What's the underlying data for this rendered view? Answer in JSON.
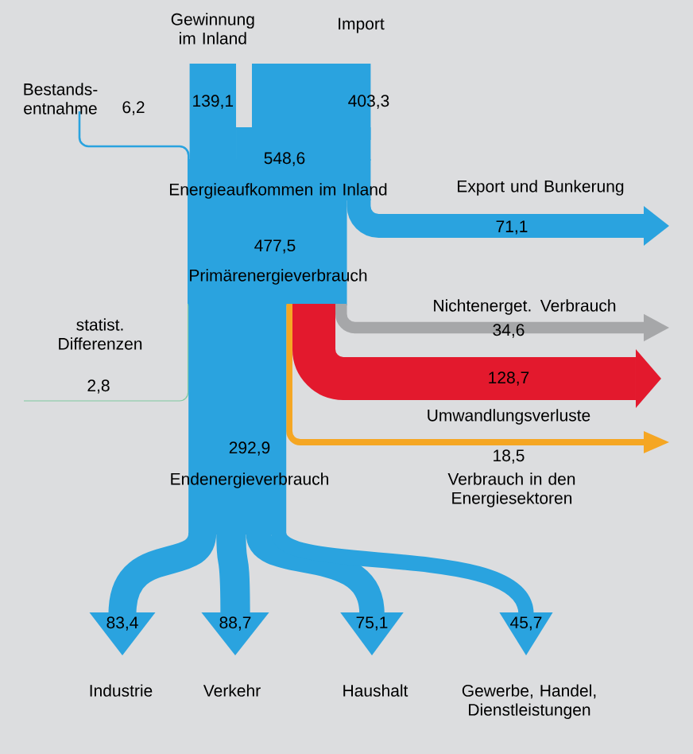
{
  "chart_data": {
    "type": "other",
    "categories": [
      "Bestands-entnahme",
      "Gewinnung im Inland",
      "Import",
      "Energieaufkommen im Inland",
      "Export und Bunkerung",
      "Primärenergieverbrauch",
      "Nichtenerget. Verbrauch",
      "Umwandlungsverluste",
      "Verbrauch in den Energiesektoren",
      "statist. Differenzen",
      "Endenergieverbrauch",
      "Industrie",
      "Verkehr",
      "Haushalt",
      "Gewerbe, Handel, Dienstleistungen"
    ],
    "values": [
      6.2,
      139.1,
      403.3,
      548.6,
      71.1,
      477.5,
      34.6,
      128.7,
      18.5,
      2.8,
      292.9,
      83.4,
      88.7,
      75.1,
      45.7
    ],
    "value_labels": [
      "6,2",
      "139,1",
      "403,3",
      "548,6",
      "71,1",
      "477,5",
      "34,6",
      "128,7",
      "18,5",
      "2,8",
      "292,9",
      "83,4",
      "88,7",
      "75,1",
      "45,7"
    ],
    "colors": [
      "#2aa3df",
      "#2aa3df",
      "#2aa3df",
      "#2aa3df",
      "#2aa3df",
      "#2aa3df",
      "#a6a7a9",
      "#e3192d",
      "#f5a623",
      "#7fc9a0",
      "#2aa3df",
      "#2aa3df",
      "#2aa3df",
      "#2aa3df",
      "#2aa3df"
    ]
  }
}
